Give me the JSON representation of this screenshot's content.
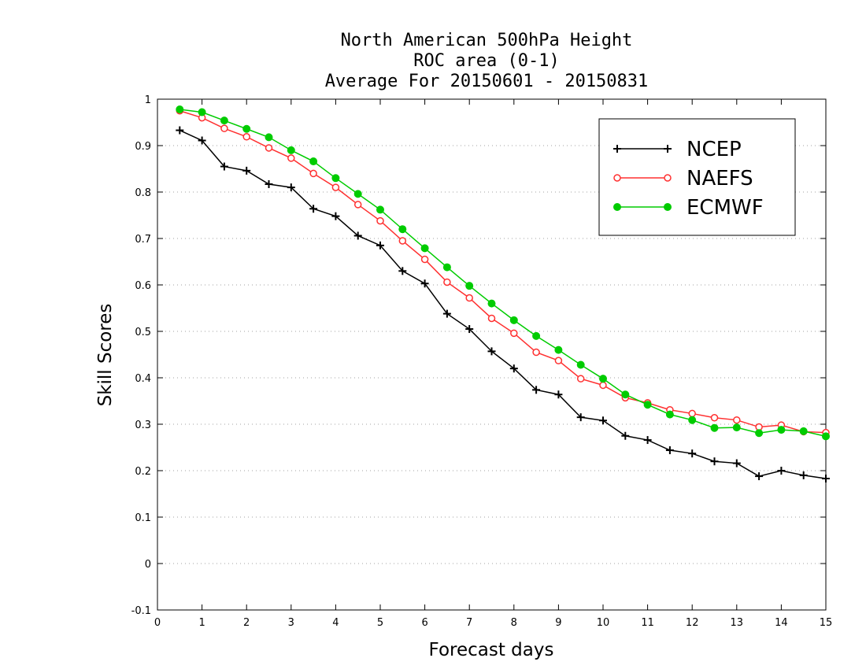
{
  "chart_data": {
    "type": "line",
    "title_lines": [
      "North American 500hPa Height",
      "ROC area (0-1)",
      "Average For 20150601 - 20150831"
    ],
    "xlabel": "Forecast days",
    "ylabel": "Skill Scores",
    "xlim": [
      0,
      15
    ],
    "ylim": [
      -0.1,
      1
    ],
    "x_ticks": [
      0,
      1,
      2,
      3,
      4,
      5,
      6,
      7,
      8,
      9,
      10,
      11,
      12,
      13,
      14,
      15
    ],
    "y_ticks": [
      -0.1,
      0,
      0.1,
      0.2,
      0.3,
      0.4,
      0.5,
      0.6,
      0.7,
      0.8,
      0.9,
      1
    ],
    "y_tick_labels": [
      "-0.1",
      "0",
      "0.1",
      "0.2",
      "0.3",
      "0.4",
      "0.5",
      "0.6",
      "0.7",
      "0.8",
      "0.9",
      "1"
    ],
    "grid": "horizontal dotted",
    "legend_position": "top-right",
    "x": [
      0.5,
      1,
      1.5,
      2,
      2.5,
      3,
      3.5,
      4,
      4.5,
      5,
      5.5,
      6,
      6.5,
      7,
      7.5,
      8,
      8.5,
      9,
      9.5,
      10,
      10.5,
      11,
      11.5,
      12,
      12.5,
      13,
      13.5,
      14,
      14.5,
      15
    ],
    "series": [
      {
        "name": "NCEP",
        "color": "#000000",
        "marker": "plus",
        "values": [
          0.933,
          0.911,
          0.855,
          0.846,
          0.817,
          0.81,
          0.764,
          0.748,
          0.706,
          0.685,
          0.63,
          0.603,
          0.538,
          0.505,
          0.457,
          0.42,
          0.374,
          0.364,
          0.315,
          0.308,
          0.275,
          0.266,
          0.244,
          0.237,
          0.22,
          0.216,
          0.188,
          0.2,
          0.19,
          0.183
        ]
      },
      {
        "name": "NAEFS",
        "color": "#ff3030",
        "marker": "open-circle",
        "values": [
          0.975,
          0.96,
          0.937,
          0.919,
          0.895,
          0.873,
          0.84,
          0.81,
          0.773,
          0.738,
          0.695,
          0.655,
          0.606,
          0.572,
          0.528,
          0.496,
          0.455,
          0.437,
          0.398,
          0.384,
          0.357,
          0.346,
          0.331,
          0.323,
          0.314,
          0.309,
          0.294,
          0.298,
          0.284,
          0.282
        ]
      },
      {
        "name": "ECMWF",
        "color": "#00cc00",
        "marker": "filled-circle",
        "values": [
          0.978,
          0.972,
          0.954,
          0.936,
          0.918,
          0.89,
          0.866,
          0.83,
          0.796,
          0.762,
          0.72,
          0.679,
          0.638,
          0.598,
          0.56,
          0.524,
          0.49,
          0.46,
          0.428,
          0.398,
          0.364,
          0.342,
          0.321,
          0.309,
          0.292,
          0.293,
          0.281,
          0.288,
          0.285,
          0.274
        ]
      }
    ]
  }
}
